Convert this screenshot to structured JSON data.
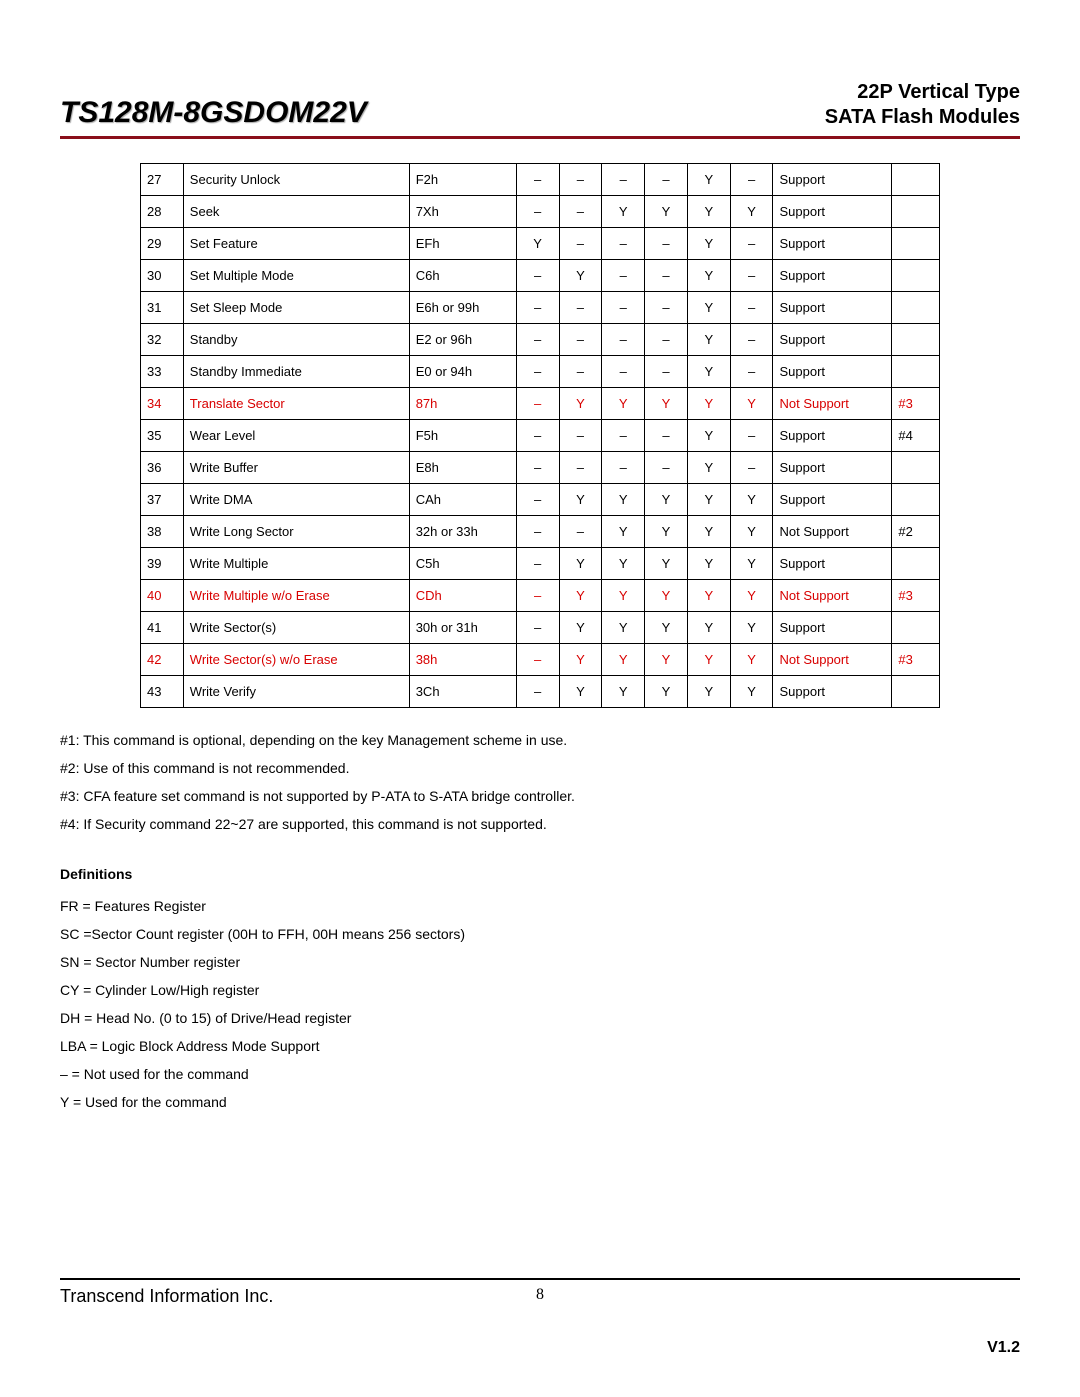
{
  "header": {
    "product": "TS128M-8GSDOM22V",
    "type_line1": "22P Vertical Type",
    "type_line2": "SATA Flash Modules"
  },
  "table": {
    "rows": [
      {
        "n": "27",
        "name": "Security Unlock",
        "code": "F2h",
        "f": [
          "–",
          "–",
          "–",
          "–",
          "Y",
          "–"
        ],
        "sup": "Support",
        "note": "",
        "red": false
      },
      {
        "n": "28",
        "name": "Seek",
        "code": "7Xh",
        "f": [
          "–",
          "–",
          "Y",
          "Y",
          "Y",
          "Y"
        ],
        "sup": "Support",
        "note": "",
        "red": false
      },
      {
        "n": "29",
        "name": "Set Feature",
        "code": "EFh",
        "f": [
          "Y",
          "–",
          "–",
          "–",
          "Y",
          "–"
        ],
        "sup": "Support",
        "note": "",
        "red": false
      },
      {
        "n": "30",
        "name": "Set Multiple Mode",
        "code": "C6h",
        "f": [
          "–",
          "Y",
          "–",
          "–",
          "Y",
          "–"
        ],
        "sup": "Support",
        "note": "",
        "red": false
      },
      {
        "n": "31",
        "name": "Set Sleep Mode",
        "code": "E6h or 99h",
        "f": [
          "–",
          "–",
          "–",
          "–",
          "Y",
          "–"
        ],
        "sup": "Support",
        "note": "",
        "red": false
      },
      {
        "n": "32",
        "name": "Standby",
        "code": "E2 or 96h",
        "f": [
          "–",
          "–",
          "–",
          "–",
          "Y",
          "–"
        ],
        "sup": "Support",
        "note": "",
        "red": false
      },
      {
        "n": "33",
        "name": "Standby Immediate",
        "code": "E0 or 94h",
        "f": [
          "–",
          "–",
          "–",
          "–",
          "Y",
          "–"
        ],
        "sup": "Support",
        "note": "",
        "red": false
      },
      {
        "n": "34",
        "name": "Translate Sector",
        "code": "87h",
        "f": [
          "–",
          "Y",
          "Y",
          "Y",
          "Y",
          "Y"
        ],
        "sup": "Not Support",
        "note": "#3",
        "red": true
      },
      {
        "n": "35",
        "name": "Wear Level",
        "code": "F5h",
        "f": [
          "–",
          "–",
          "–",
          "–",
          "Y",
          "–"
        ],
        "sup": "Support",
        "note": "#4",
        "red": false
      },
      {
        "n": "36",
        "name": "Write Buffer",
        "code": "E8h",
        "f": [
          "–",
          "–",
          "–",
          "–",
          "Y",
          "–"
        ],
        "sup": "Support",
        "note": "",
        "red": false
      },
      {
        "n": "37",
        "name": "Write DMA",
        "code": "CAh",
        "f": [
          "–",
          "Y",
          "Y",
          "Y",
          "Y",
          "Y"
        ],
        "sup": "Support",
        "note": "",
        "red": false
      },
      {
        "n": "38",
        "name": "Write Long Sector",
        "code": "32h or 33h",
        "f": [
          "–",
          "–",
          "Y",
          "Y",
          "Y",
          "Y"
        ],
        "sup": "Not Support",
        "note": "#2",
        "red": false
      },
      {
        "n": "39",
        "name": "Write Multiple",
        "code": "C5h",
        "f": [
          "–",
          "Y",
          "Y",
          "Y",
          "Y",
          "Y"
        ],
        "sup": "Support",
        "note": "",
        "red": false
      },
      {
        "n": "40",
        "name": "Write Multiple w/o Erase",
        "code": "CDh",
        "f": [
          "–",
          "Y",
          "Y",
          "Y",
          "Y",
          "Y"
        ],
        "sup": "Not Support",
        "note": "#3",
        "red": true
      },
      {
        "n": "41",
        "name": "Write Sector(s)",
        "code": "30h or 31h",
        "f": [
          "–",
          "Y",
          "Y",
          "Y",
          "Y",
          "Y"
        ],
        "sup": "Support",
        "note": "",
        "red": false
      },
      {
        "n": "42",
        "name": "Write Sector(s) w/o Erase",
        "code": "38h",
        "f": [
          "–",
          "Y",
          "Y",
          "Y",
          "Y",
          "Y"
        ],
        "sup": "Not Support",
        "note": "#3",
        "red": true
      },
      {
        "n": "43",
        "name": "Write Verify",
        "code": "3Ch",
        "f": [
          "–",
          "Y",
          "Y",
          "Y",
          "Y",
          "Y"
        ],
        "sup": "Support",
        "note": "",
        "red": false
      }
    ]
  },
  "notes": [
    "#1: This command is optional, depending on the key Management scheme in use.",
    "#2: Use of this command is not recommended.",
    "#3: CFA feature set command is not supported by P-ATA to S-ATA bridge controller.",
    "#4: If Security command 22~27 are supported, this command is not supported."
  ],
  "definitions_title": "Definitions",
  "definitions": [
    "FR = Features Register",
    "SC =Sector Count register (00H to FFH, 00H means 256 sectors)",
    "SN = Sector Number register",
    "CY = Cylinder Low/High register",
    "DH = Head No. (0 to 15) of Drive/Head register",
    "LBA = Logic Block Address Mode Support",
    "– = Not used for the command",
    "Y = Used for the command"
  ],
  "footer": {
    "company": "Transcend Information Inc.",
    "page": "8",
    "version": "V1.2"
  }
}
